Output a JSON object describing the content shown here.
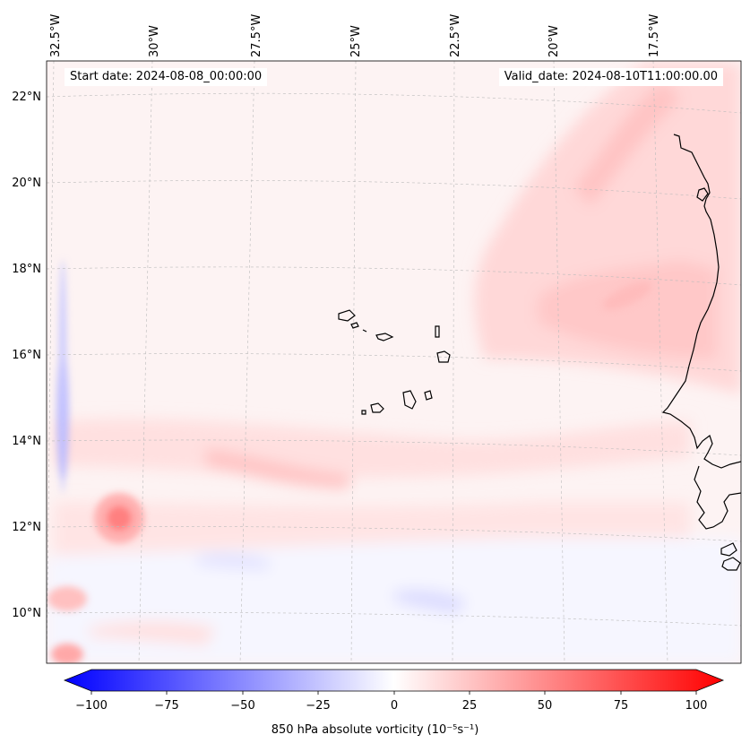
{
  "map": {
    "start_date_label": "Start date: 2024-08-08_00:00:00",
    "valid_date_label": "Valid_date: 2024-08-10T11:00:00.00",
    "lon_labels": [
      "32.5°W",
      "30°W",
      "27.5°W",
      "25°W",
      "22.5°W",
      "20°W",
      "17.5°W"
    ],
    "lat_labels": [
      "22°N",
      "20°N",
      "18°N",
      "16°N",
      "14°N",
      "12°N",
      "10°N"
    ],
    "gridlines": true,
    "field": "850 hPa absolute vorticity",
    "colors": {
      "negative": "#0000ff",
      "zero": "#ffffff",
      "positive": "#ff0000",
      "coast": "#000000"
    }
  },
  "colorbar": {
    "label": "850 hPa absolute vorticity (10⁻⁵s⁻¹)",
    "ticks": [
      "−100",
      "−75",
      "−50",
      "−25",
      "0",
      "25",
      "50",
      "75",
      "100"
    ],
    "min": -100,
    "max": 100,
    "extend": "both"
  }
}
